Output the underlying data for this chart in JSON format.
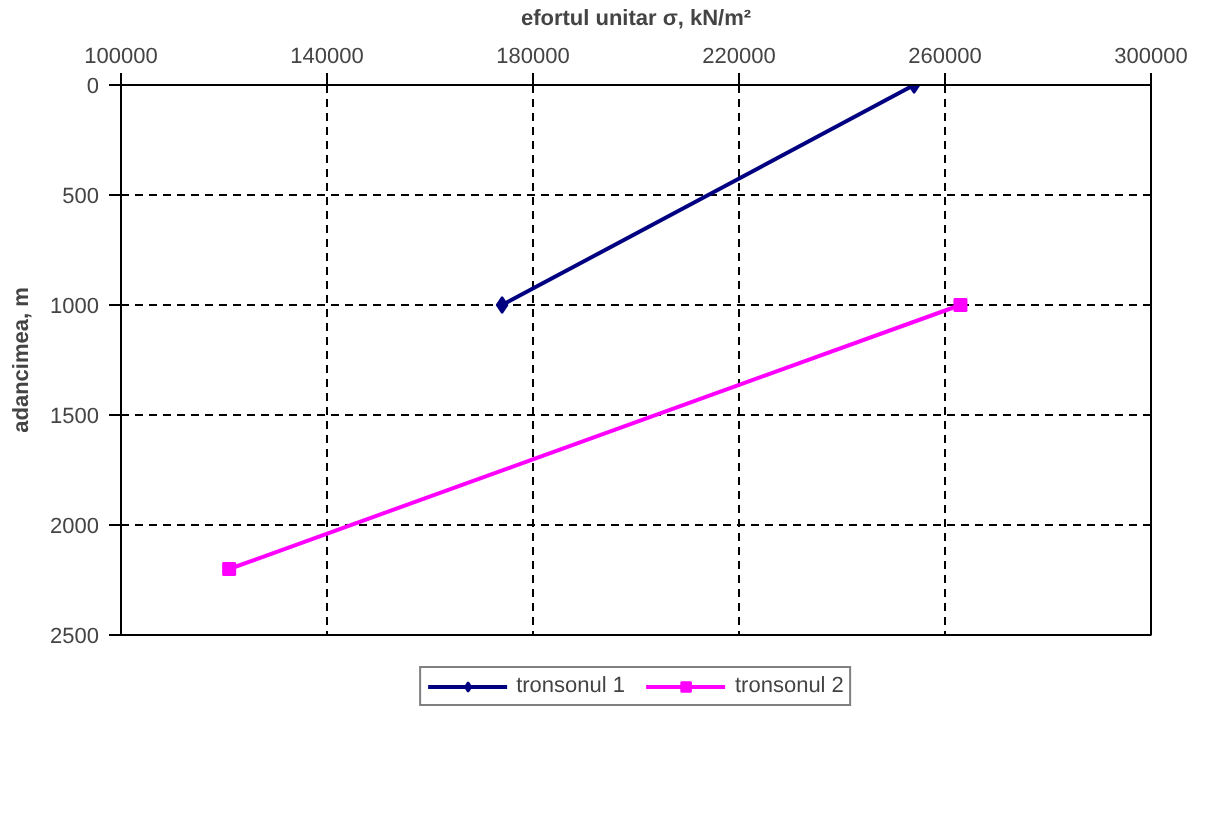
{
  "chart_data": {
    "type": "line",
    "xlabel": "efortul unitar σ, kN/m²",
    "ylabel": "adancimea, m",
    "xlim": [
      100000,
      300000
    ],
    "xticks": [
      100000,
      140000,
      180000,
      220000,
      260000,
      300000
    ],
    "ylim": [
      2500,
      0
    ],
    "yticks": [
      0,
      500,
      1000,
      1500,
      2000,
      2500
    ],
    "grid": true,
    "legend": "bottom",
    "line_style": "solid",
    "series": [
      {
        "name": "tronsonul 1",
        "color": "#000080",
        "marker": "diamond",
        "x": [
          254000,
          174000
        ],
        "values": [
          0,
          1000
        ]
      },
      {
        "name": "tronsonul 2",
        "color": "#ff00ff",
        "marker": "square",
        "x": [
          263000,
          121000
        ],
        "values": [
          1000,
          2200
        ]
      }
    ]
  }
}
